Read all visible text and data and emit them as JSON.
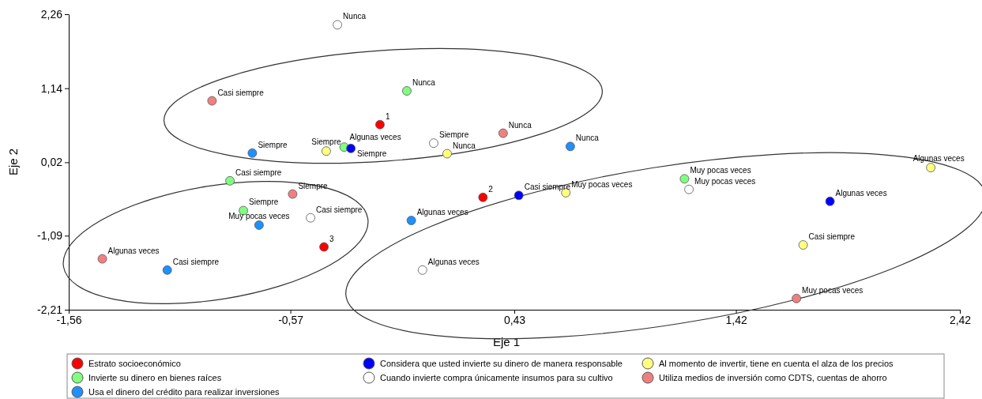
{
  "chart_data": {
    "type": "scatter",
    "xlabel": "Eje 1",
    "ylabel": "Eje 2",
    "xlim": [
      -1.56,
      2.42
    ],
    "xticks": [
      {
        "value": -1.56,
        "label": "-1,56"
      },
      {
        "value": -0.57,
        "label": "-0,57"
      },
      {
        "value": 0.43,
        "label": "0,43"
      },
      {
        "value": 1.42,
        "label": "1,42"
      },
      {
        "value": 2.42,
        "label": "2,42"
      }
    ],
    "ylim": [
      -2.21,
      2.26
    ],
    "yticks": [
      {
        "value": -2.21,
        "label": "-2,21"
      },
      {
        "value": -1.09,
        "label": "-1,09"
      },
      {
        "value": 0.02,
        "label": "0,02"
      },
      {
        "value": 1.14,
        "label": "1,14"
      },
      {
        "value": 2.26,
        "label": "2,26"
      }
    ],
    "marker": "circle",
    "legend": "bottom",
    "series": [
      {
        "name": "Estrato socioeconómico",
        "color": "#ff0000",
        "x": [
          -0.17,
          0.29,
          -0.42
        ],
        "values": [
          0.59,
          -0.51,
          -1.26
        ]
      },
      {
        "name": "Invierte su dinero en bienes raíces",
        "color": "#80ff80",
        "x": [
          -0.05,
          -0.33,
          -0.84,
          -0.78,
          1.19
        ],
        "values": [
          1.1,
          0.25,
          -0.26,
          -0.71,
          -0.23
        ]
      },
      {
        "name": "Usa el dinero del crédito para realizar inversiones",
        "color": "#1e90ff",
        "x": [
          -0.74,
          -0.71,
          -1.12,
          -0.03,
          0.68
        ],
        "values": [
          0.16,
          -0.93,
          -1.61,
          -0.86,
          0.26
        ]
      },
      {
        "name": "Considera que usted invierte su dinero de manera responsable",
        "color": "#0000ff",
        "x": [
          -0.3,
          0.45,
          1.84
        ],
        "values": [
          0.23,
          -0.48,
          -0.57
        ]
      },
      {
        "name": "Cuando invierte compra únicamente insumos para su cultivo",
        "color": "#ffffff",
        "x": [
          -0.36,
          0.07,
          -0.48,
          0.02,
          1.21
        ],
        "values": [
          2.1,
          0.31,
          -0.82,
          -1.61,
          -0.39
        ]
      },
      {
        "name": "Al momento de invertir, tiene en cuenta el alza de los precios",
        "color": "#ffff80",
        "x": [
          -0.41,
          0.13,
          0.66,
          1.72,
          2.29
        ],
        "values": [
          0.19,
          0.15,
          -0.44,
          -1.23,
          -0.06
        ]
      },
      {
        "name": "Utiliza medios de inversión como CDTS, cuentas de ahorro",
        "color": "#f08080",
        "x": [
          -0.92,
          0.38,
          -0.56,
          -1.41,
          1.69
        ],
        "values": [
          0.95,
          0.46,
          -0.46,
          -1.44,
          -2.04
        ]
      }
    ],
    "annotations": [
      {
        "text": "1",
        "x": -0.17,
        "y": 0.59
      },
      {
        "text": "2",
        "x": 0.29,
        "y": -0.51
      },
      {
        "text": "3",
        "x": -0.42,
        "y": -1.26
      },
      {
        "text": "Nunca",
        "x": -0.05,
        "y": 1.1
      },
      {
        "text": "Algunas veces",
        "x": -0.33,
        "y": 0.25
      },
      {
        "text": "Casi siempre",
        "x": -0.84,
        "y": -0.26
      },
      {
        "text": "Siempre",
        "x": -0.78,
        "y": -0.71
      },
      {
        "text": "Muy pocas veces",
        "x": 1.19,
        "y": -0.23
      },
      {
        "text": "Siempre",
        "x": -0.74,
        "y": 0.16
      },
      {
        "text": "Muy pocas veces",
        "x": -0.71,
        "y": -0.93
      },
      {
        "text": "Casi siempre",
        "x": -1.12,
        "y": -1.61
      },
      {
        "text": "Algunas veces",
        "x": -0.03,
        "y": -0.86
      },
      {
        "text": "Nunca",
        "x": 0.68,
        "y": 0.26
      },
      {
        "text": "Siempre",
        "x": -0.3,
        "y": 0.23
      },
      {
        "text": "Casi siempre",
        "x": 0.45,
        "y": -0.48
      },
      {
        "text": "Algunas veces",
        "x": 1.84,
        "y": -0.57
      },
      {
        "text": "Nunca",
        "x": -0.36,
        "y": 2.1
      },
      {
        "text": "Siempre",
        "x": 0.07,
        "y": 0.31
      },
      {
        "text": "Casi siempre",
        "x": -0.48,
        "y": -0.82
      },
      {
        "text": "Algunas veces",
        "x": 0.02,
        "y": -1.61
      },
      {
        "text": "Muy pocas veces",
        "x": 1.21,
        "y": -0.39
      },
      {
        "text": "Siempre",
        "x": -0.41,
        "y": 0.19
      },
      {
        "text": "Nunca",
        "x": 0.13,
        "y": 0.15
      },
      {
        "text": "Muy pocas veces",
        "x": 0.66,
        "y": -0.44
      },
      {
        "text": "Casi siempre",
        "x": 1.72,
        "y": -1.23
      },
      {
        "text": "Algunas veces",
        "x": 2.29,
        "y": -0.06
      },
      {
        "text": "Casi siempre",
        "x": -0.92,
        "y": 0.95
      },
      {
        "text": "Nunca",
        "x": 0.38,
        "y": 0.46
      },
      {
        "text": "Siempre",
        "x": -0.56,
        "y": -0.46
      },
      {
        "text": "Algunas veces",
        "x": -1.41,
        "y": -1.44
      },
      {
        "text": "Muy pocas veces",
        "x": 1.69,
        "y": -2.04
      }
    ]
  }
}
